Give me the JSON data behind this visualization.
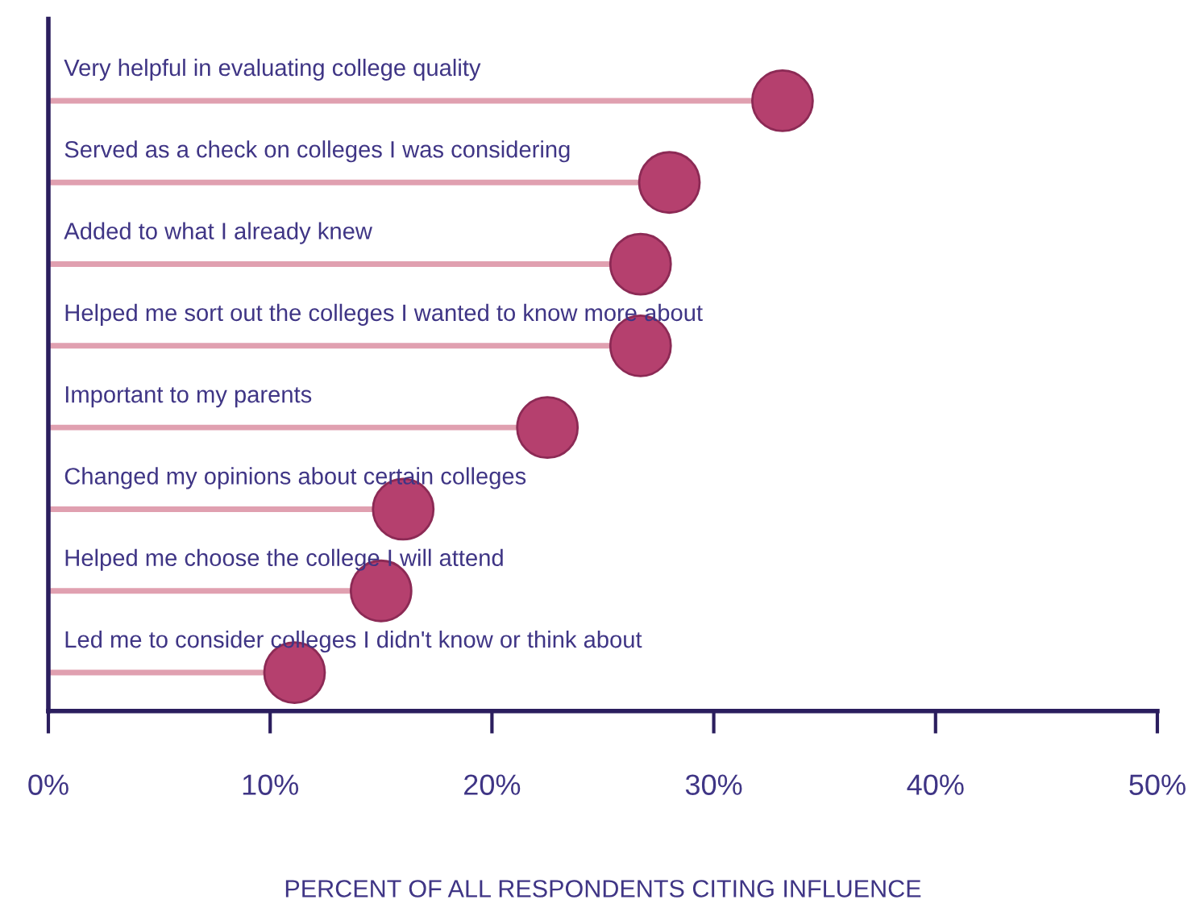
{
  "chart_data": {
    "type": "lollipop",
    "orientation": "horizontal",
    "xlabel": "PERCENT OF ALL RESPONDENTS CITING INFLUENCE",
    "categories": [
      "Very helpful in evaluating college quality",
      "Served as a check on colleges I was considering",
      "Added to what I already knew",
      "Helped me sort out the colleges I wanted to know more about",
      "Important to my parents",
      "Changed my opinions about certain colleges",
      "Helped me choose the college I will attend",
      "Led me to consider colleges I didn't know or think about"
    ],
    "values": [
      33.1,
      28.0,
      26.7,
      26.7,
      22.5,
      16.0,
      15.0,
      11.1
    ],
    "color": "#b5406e",
    "xlim": [
      0,
      50
    ],
    "xticks": [
      {
        "value": 0,
        "label": "0%"
      },
      {
        "value": 10,
        "label": "10%"
      },
      {
        "value": 20,
        "label": "20%"
      },
      {
        "value": 30,
        "label": "30%"
      },
      {
        "value": 40,
        "label": "40%"
      },
      {
        "value": 50,
        "label": "50%"
      }
    ],
    "marker": "circle",
    "grid": false,
    "legend": false
  }
}
